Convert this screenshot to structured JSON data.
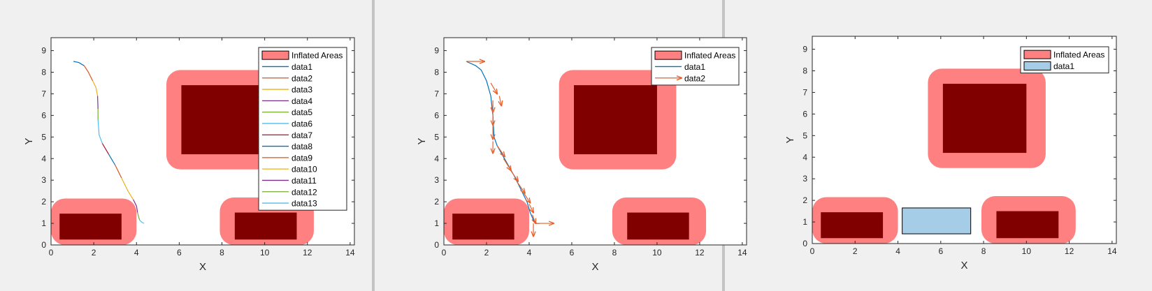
{
  "colors": {
    "inflated": "#ff8080",
    "obstacle": "#800000",
    "axes": "#262626",
    "panel_bg": "#f0f0f0",
    "free_box": "#a6cde8",
    "arrow": "#e8602a"
  },
  "chart_data": [
    {
      "type": "line",
      "xlabel": "X",
      "ylabel": "Y",
      "xlim": [
        0,
        14.2
      ],
      "ylim": [
        0,
        9.6
      ],
      "xticks": [
        "0",
        "2",
        "4",
        "6",
        "8",
        "10",
        "12",
        "14"
      ],
      "yticks": [
        "0",
        "1",
        "2",
        "3",
        "4",
        "5",
        "6",
        "7",
        "8",
        "9"
      ],
      "grid": false,
      "legend_position": "top-right",
      "legend": [
        "Inflated Areas",
        "data1",
        "data2",
        "data3",
        "data4",
        "data5",
        "data6",
        "data7",
        "data8",
        "data9",
        "data10",
        "data11",
        "data12",
        "data13"
      ],
      "inflated_areas": [
        [
          0,
          0,
          4.0,
          2.15
        ],
        [
          5.4,
          3.5,
          10.9,
          8.1
        ],
        [
          7.9,
          0,
          12.3,
          2.2
        ]
      ],
      "obstacles": [
        [
          0.4,
          0.25,
          3.3,
          1.45
        ],
        [
          6.1,
          4.2,
          10.0,
          7.4
        ],
        [
          8.6,
          0.25,
          11.5,
          1.5
        ]
      ],
      "series": [
        {
          "name": "data1",
          "color": "#0072bd",
          "x": [
            1.05,
            1.3,
            1.55
          ],
          "y": [
            8.5,
            8.45,
            8.3
          ]
        },
        {
          "name": "data2",
          "color": "#d95319",
          "x": [
            1.55,
            1.75,
            1.95
          ],
          "y": [
            8.3,
            8.0,
            7.6
          ]
        },
        {
          "name": "data3",
          "color": "#edb120",
          "x": [
            1.95,
            2.1,
            2.18
          ],
          "y": [
            7.6,
            7.3,
            6.9
          ]
        },
        {
          "name": "data4",
          "color": "#7e2f8e",
          "x": [
            2.18,
            2.2
          ],
          "y": [
            6.9,
            6.3
          ]
        },
        {
          "name": "data5",
          "color": "#77ac30",
          "x": [
            2.2,
            2.2
          ],
          "y": [
            6.3,
            5.8
          ]
        },
        {
          "name": "data6",
          "color": "#4dbeee",
          "x": [
            2.2,
            2.25,
            2.4
          ],
          "y": [
            5.8,
            5.1,
            4.7
          ]
        },
        {
          "name": "data7",
          "color": "#a2142f",
          "x": [
            2.4,
            2.7
          ],
          "y": [
            4.7,
            4.2
          ]
        },
        {
          "name": "data8",
          "color": "#0072bd",
          "x": [
            2.7,
            3.0
          ],
          "y": [
            4.2,
            3.7
          ]
        },
        {
          "name": "data9",
          "color": "#d95319",
          "x": [
            3.0,
            3.3
          ],
          "y": [
            3.7,
            3.1
          ]
        },
        {
          "name": "data10",
          "color": "#edb120",
          "x": [
            3.3,
            3.6,
            3.85
          ],
          "y": [
            3.1,
            2.5,
            2.1
          ]
        },
        {
          "name": "data11",
          "color": "#7e2f8e",
          "x": [
            3.85,
            4.0,
            4.05
          ],
          "y": [
            2.1,
            1.8,
            1.5
          ]
        },
        {
          "name": "data12",
          "color": "#77ac30",
          "x": [
            4.05,
            4.1,
            4.15
          ],
          "y": [
            1.5,
            1.3,
            1.15
          ]
        },
        {
          "name": "data13",
          "color": "#4dbeee",
          "x": [
            4.15,
            4.25,
            4.35
          ],
          "y": [
            1.15,
            1.05,
            1.0
          ]
        }
      ]
    },
    {
      "type": "line",
      "xlabel": "X",
      "ylabel": "Y",
      "xlim": [
        0,
        14.2
      ],
      "ylim": [
        0,
        9.6
      ],
      "xticks": [
        "0",
        "2",
        "4",
        "6",
        "8",
        "10",
        "12",
        "14"
      ],
      "yticks": [
        "0",
        "1",
        "2",
        "3",
        "4",
        "5",
        "6",
        "7",
        "8",
        "9"
      ],
      "grid": false,
      "legend_position": "top-right",
      "legend": [
        "Inflated Areas",
        "data1",
        "data2"
      ],
      "inflated_areas": [
        [
          0,
          0,
          4.0,
          2.15
        ],
        [
          5.4,
          3.5,
          10.9,
          8.1
        ],
        [
          7.9,
          0,
          12.3,
          2.2
        ]
      ],
      "obstacles": [
        [
          0.4,
          0.25,
          3.3,
          1.45
        ],
        [
          6.1,
          4.2,
          10.0,
          7.4
        ],
        [
          8.6,
          0.25,
          11.5,
          1.5
        ]
      ],
      "series": [
        {
          "name": "data1",
          "color": "#0072bd",
          "x": [
            1.05,
            1.5,
            1.75,
            2.0,
            2.2,
            2.3,
            2.35,
            2.5,
            2.9,
            3.3,
            3.6,
            3.9,
            4.05,
            4.2,
            4.35,
            4.5
          ],
          "y": [
            8.5,
            8.3,
            8.1,
            7.6,
            6.9,
            6.0,
            5.0,
            4.6,
            3.9,
            3.2,
            2.6,
            2.0,
            1.5,
            1.15,
            1.0,
            1.0
          ]
        }
      ],
      "arrows": {
        "name": "data2",
        "x": [
          1.05,
          2.2,
          2.6,
          2.3,
          2.3,
          2.3,
          2.3,
          2.5,
          2.8,
          3.1,
          3.45,
          3.75,
          4.0,
          4.15,
          4.2,
          4.3
        ],
        "y": [
          8.5,
          7.5,
          6.9,
          6.7,
          6.1,
          5.5,
          4.8,
          4.6,
          4.0,
          3.5,
          2.9,
          2.4,
          1.9,
          1.4,
          1.0,
          1.0
        ],
        "u": [
          0.85,
          0.3,
          0.1,
          0.0,
          0.0,
          0.0,
          0.0,
          0.35,
          0.35,
          0.38,
          0.35,
          0.3,
          0.2,
          0.15,
          0.0,
          0.85
        ],
        "v": [
          0.0,
          -0.5,
          -0.45,
          -0.55,
          -0.55,
          -0.6,
          -0.55,
          -0.5,
          -0.55,
          -0.55,
          -0.5,
          -0.45,
          -0.4,
          -0.4,
          -0.6,
          0.0
        ]
      }
    },
    {
      "type": "area",
      "xlabel": "X",
      "ylabel": "Y",
      "xlim": [
        0,
        14.2
      ],
      "ylim": [
        0,
        9.6
      ],
      "xticks": [
        "0",
        "2",
        "4",
        "6",
        "8",
        "10",
        "12",
        "14"
      ],
      "yticks": [
        "0",
        "1",
        "2",
        "3",
        "4",
        "5",
        "6",
        "7",
        "8",
        "9"
      ],
      "grid": false,
      "legend_position": "top-right",
      "legend": [
        "Inflated Areas",
        "data1"
      ],
      "inflated_areas": [
        [
          0,
          0,
          4.0,
          2.15
        ],
        [
          5.4,
          3.5,
          10.9,
          8.1
        ],
        [
          7.9,
          0,
          12.3,
          2.2
        ]
      ],
      "obstacles": [
        [
          0.4,
          0.25,
          3.3,
          1.45
        ],
        [
          6.1,
          4.2,
          10.0,
          7.4
        ],
        [
          8.6,
          0.25,
          11.5,
          1.5
        ]
      ],
      "free_box": {
        "name": "data1",
        "rect": [
          4.2,
          0.45,
          7.4,
          1.65
        ]
      }
    }
  ]
}
